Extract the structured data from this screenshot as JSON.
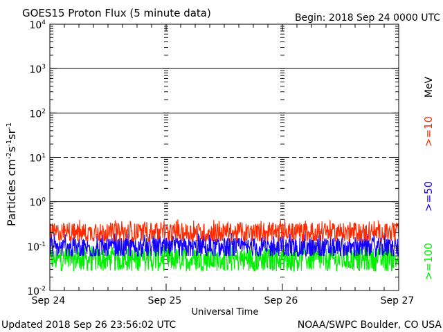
{
  "header": {
    "title": "GOES15 Proton Flux (5 minute data)",
    "begin": "Begin: 2018 Sep 24 0000 UTC"
  },
  "footer": {
    "updated": "Updated 2018 Sep 26 23:56:02 UTC",
    "source": "NOAA/SWPC Boulder, CO USA"
  },
  "colors": {
    "ge10": "#ff2a00",
    "ge50": "#1400ff",
    "ge100": "#00ee00",
    "axis": "#000000"
  },
  "chart_data": {
    "type": "line",
    "title": "GOES15 Proton Flux (5 minute data)",
    "xlabel": "Universal Time",
    "ylabel": "Particles cm-2s-1sr-1",
    "y_scale": "log",
    "ylim": [
      0.01,
      10000
    ],
    "y_ticks": [
      {
        "base": "10",
        "exp": "-2",
        "value": 0.01
      },
      {
        "base": "10",
        "exp": "-1",
        "value": 0.1
      },
      {
        "base": "10",
        "exp": "0",
        "value": 1
      },
      {
        "base": "10",
        "exp": "1",
        "value": 10
      },
      {
        "base": "10",
        "exp": "2",
        "value": 100
      },
      {
        "base": "10",
        "exp": "3",
        "value": 1000
      },
      {
        "base": "10",
        "exp": "4",
        "value": 10000
      }
    ],
    "x_ticks": [
      "Sep 24",
      "Sep 25",
      "Sep 26",
      "Sep 27"
    ],
    "xlim": [
      "2018-09-24 00:00",
      "2018-09-27 00:00"
    ],
    "gridlines": [
      {
        "value": 1,
        "style": "solid"
      },
      {
        "value": 10,
        "style": "dashed"
      },
      {
        "value": 100,
        "style": "solid"
      },
      {
        "value": 1000,
        "style": "solid"
      }
    ],
    "unit_label": "MeV",
    "series": [
      {
        "name": ">=10",
        "color_key": "ge10",
        "median": 0.2,
        "min": 0.13,
        "max": 0.4
      },
      {
        "name": ">=50",
        "color_key": "ge50",
        "median": 0.09,
        "min": 0.06,
        "max": 0.2
      },
      {
        "name": ">=100",
        "color_key": "ge100",
        "median": 0.05,
        "min": 0.025,
        "max": 0.1
      }
    ]
  }
}
